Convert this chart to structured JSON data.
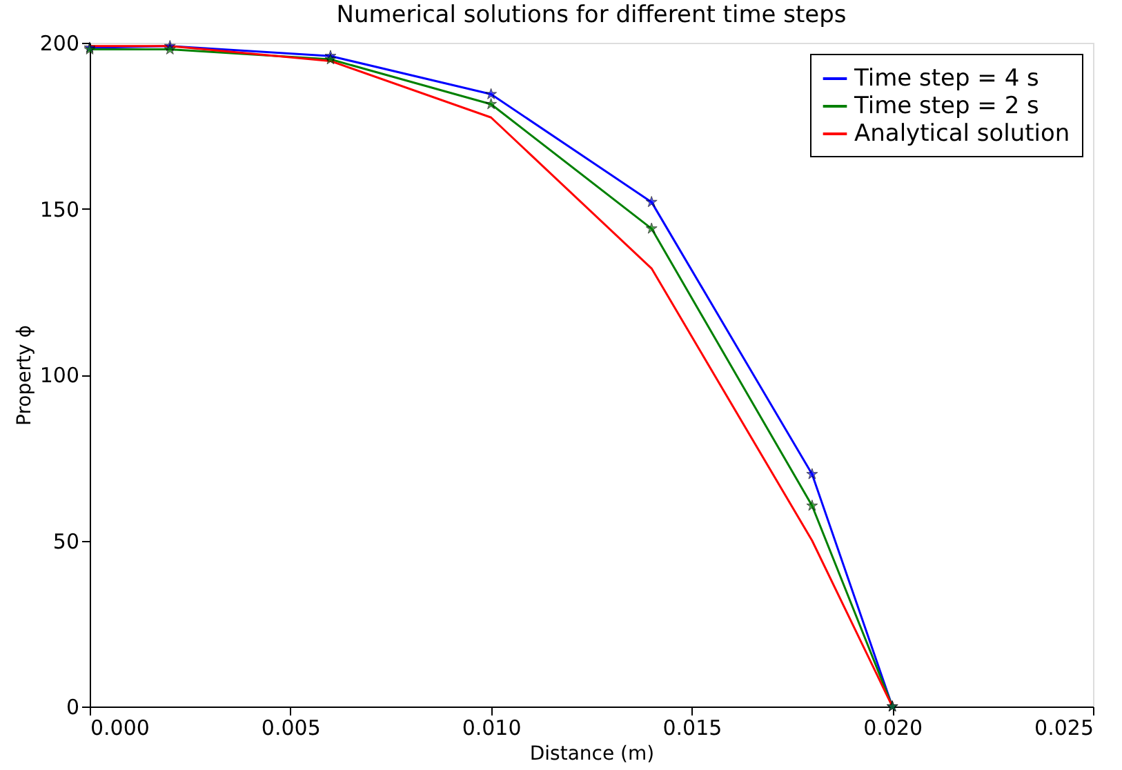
{
  "chart_data": {
    "type": "line",
    "title": "Numerical solutions for different time steps",
    "xlabel": "Distance (m)",
    "ylabel": "Property ϕ",
    "x": [
      0,
      0.002,
      0.006,
      0.01,
      0.014,
      0.018,
      0.02
    ],
    "series": [
      {
        "name": "Time step = 4 s",
        "color": "#0000ff",
        "marker": "star",
        "values": [
          198.5,
          199,
          196,
          184.5,
          152,
          70,
          0
        ]
      },
      {
        "name": "Time step = 2 s",
        "color": "#008000",
        "marker": "star",
        "values": [
          198,
          198,
          195,
          181.5,
          144,
          60.5,
          0
        ]
      },
      {
        "name": "Analytical solution",
        "color": "#ff0000",
        "marker": "none",
        "values": [
          199,
          199,
          194.5,
          177.5,
          132,
          50,
          0
        ]
      }
    ],
    "xlim": [
      0,
      0.025
    ],
    "xticks": [
      {
        "value": 0,
        "label": "0.000"
      },
      {
        "value": 0.005,
        "label": "0.005"
      },
      {
        "value": 0.01,
        "label": "0.010"
      },
      {
        "value": 0.015,
        "label": "0.015"
      },
      {
        "value": 0.02,
        "label": "0.020"
      },
      {
        "value": 0.025,
        "label": "0.025"
      }
    ],
    "ylim": [
      0,
      200
    ],
    "yticks": [
      0,
      50,
      100,
      150,
      200
    ],
    "grid": false,
    "legend": "top right"
  }
}
